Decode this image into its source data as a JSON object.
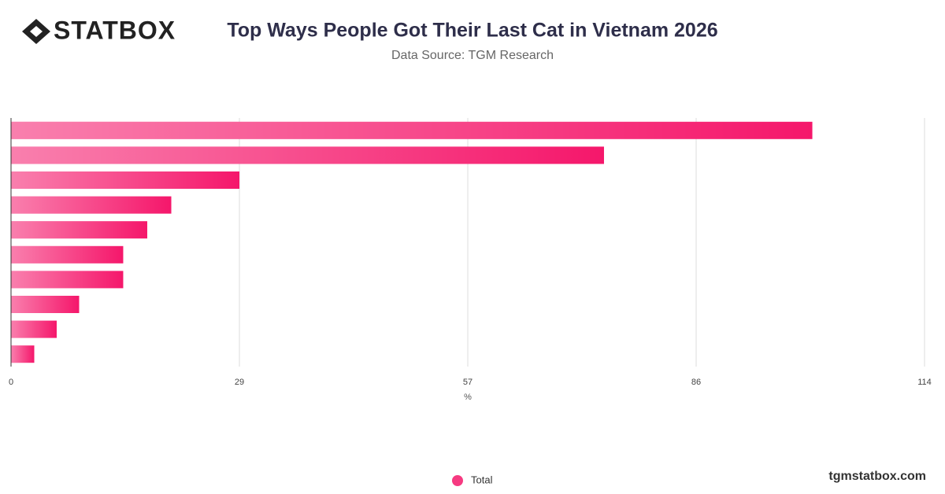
{
  "brand": {
    "logo": "STATBOX",
    "site": "tgmstatbox.com"
  },
  "chart_data": {
    "type": "bar",
    "orientation": "horizontal",
    "title": "Top Ways People Got Their Last Cat in Vietnam 2026",
    "subtitle": "Data Source: TGM Research",
    "x_label": "%",
    "categories": [
      null,
      null,
      null,
      null,
      null,
      null,
      null,
      null,
      null,
      null
    ],
    "series": [
      {
        "name": "Total",
        "color": "#f5176b",
        "values": [
          100,
          74,
          28.5,
          20,
          17,
          14,
          14,
          8.5,
          5.7,
          2.9
        ]
      }
    ],
    "xlim": [
      0,
      114
    ],
    "xticks": [
      0,
      {
        "value": 28.5,
        "label": "29"
      },
      57,
      {
        "value": 85.5,
        "label": "86"
      },
      114
    ],
    "grid": true,
    "legend": "bottom"
  }
}
